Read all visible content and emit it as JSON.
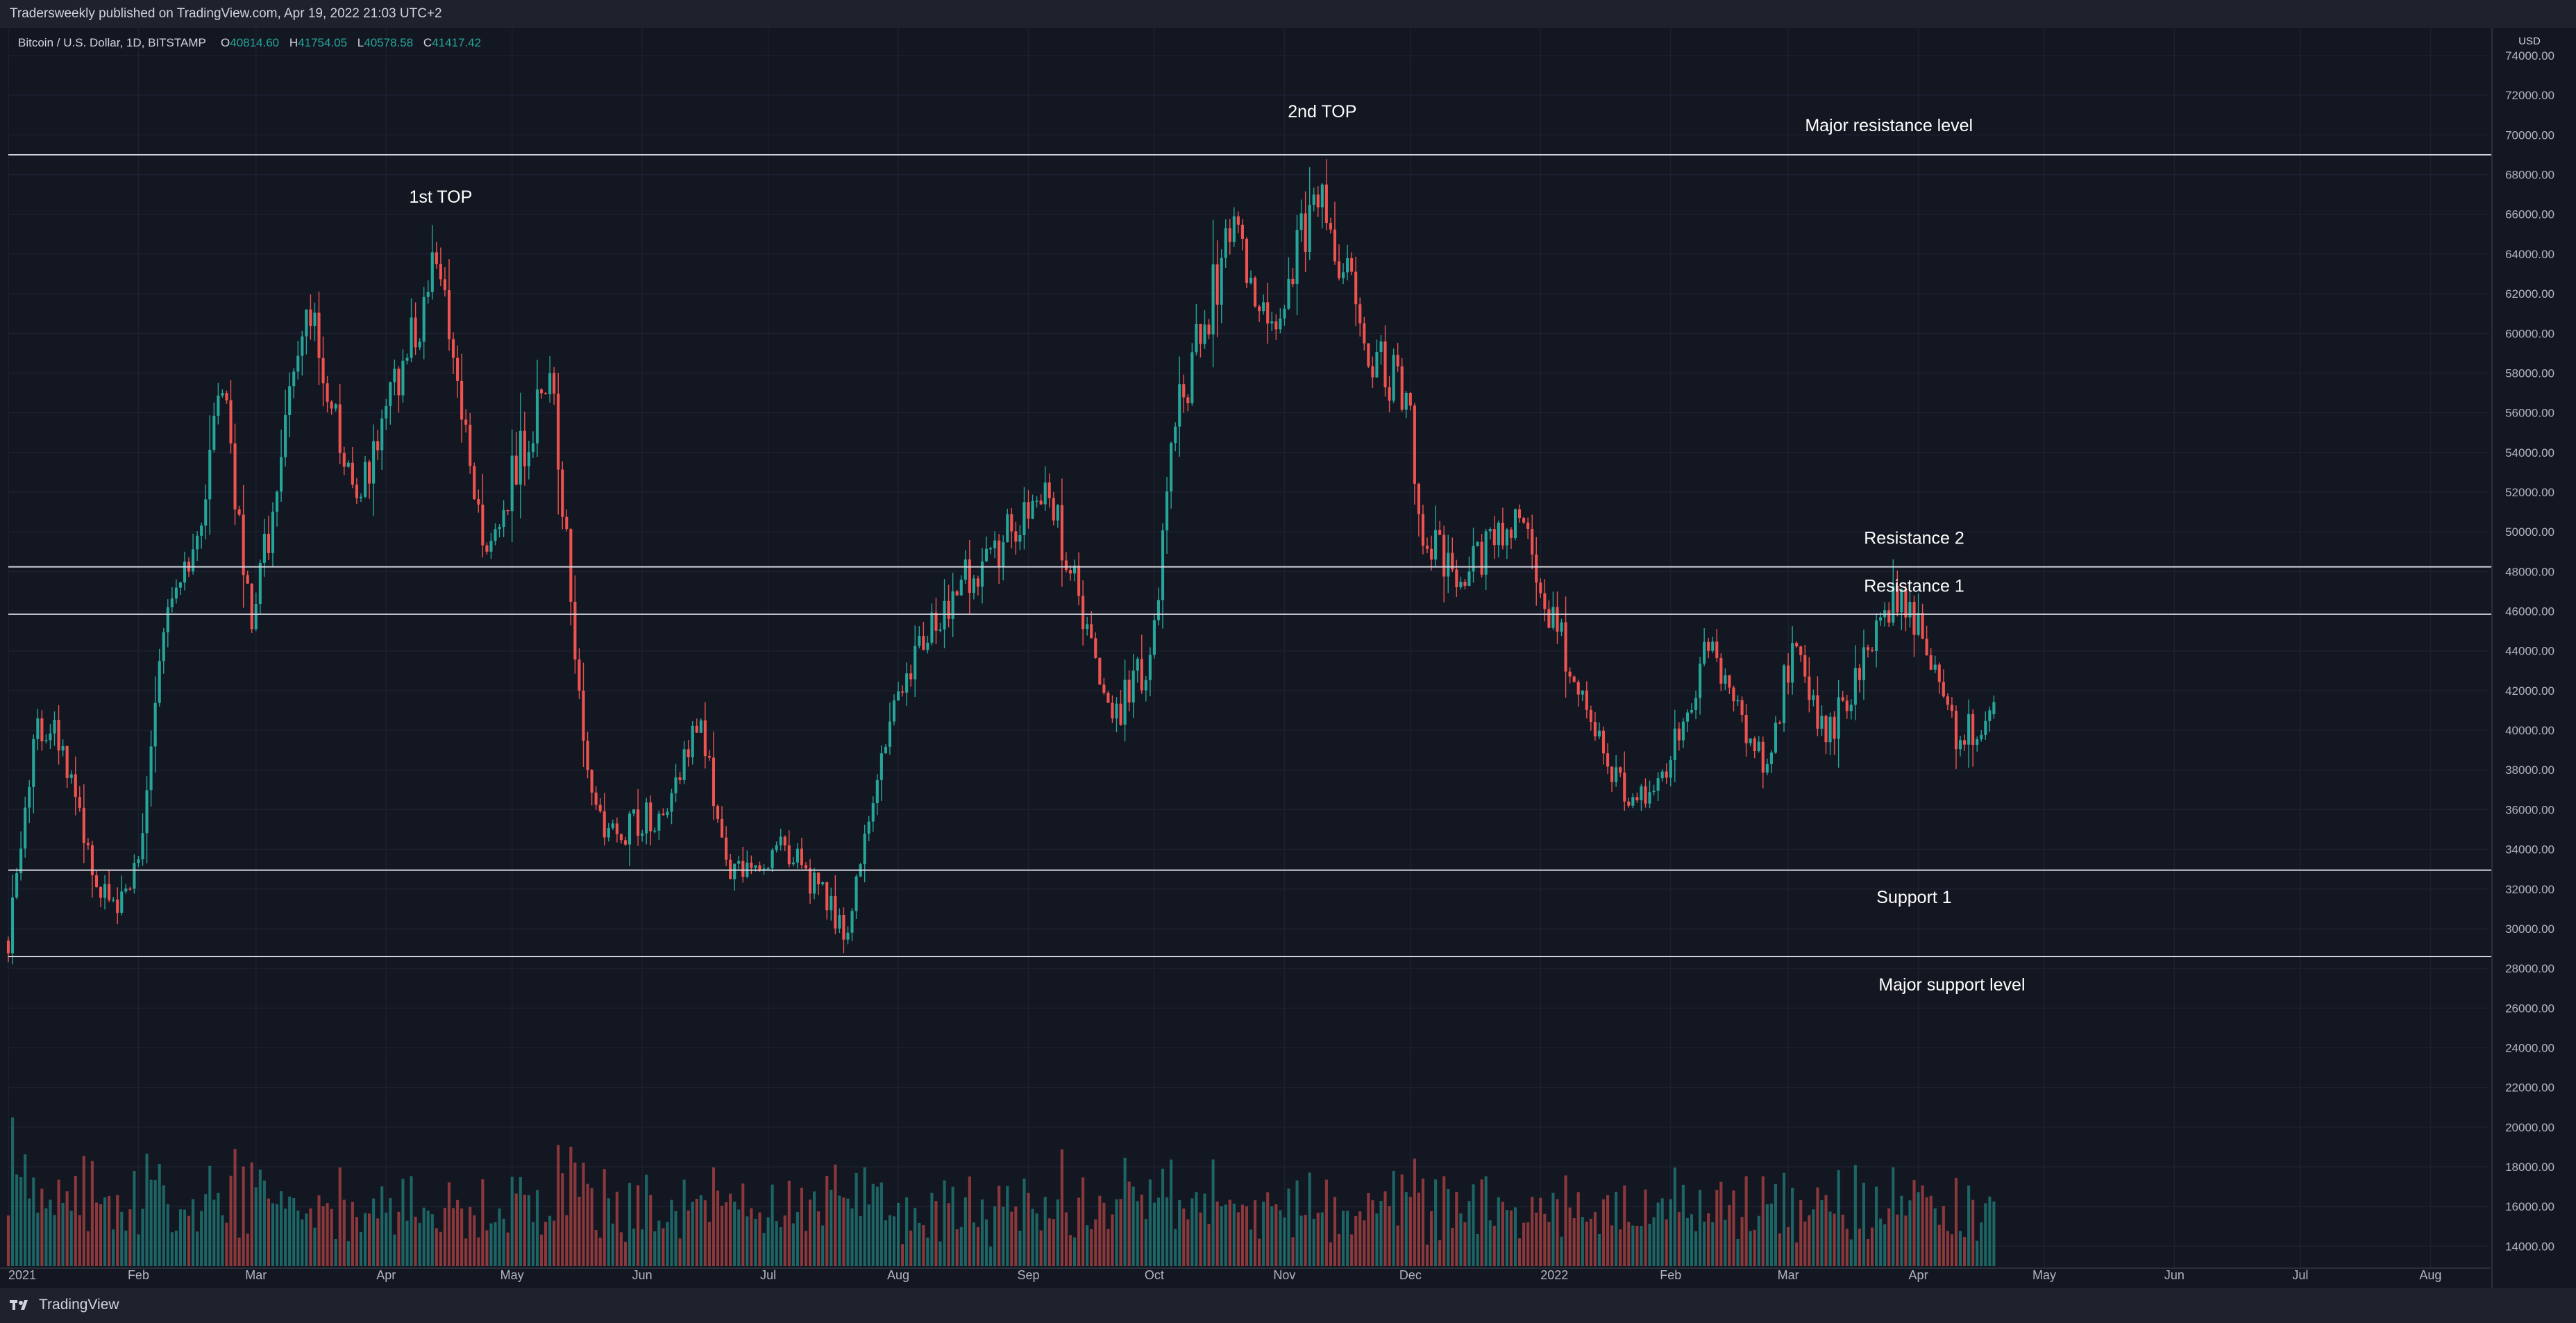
{
  "header": {
    "publish_text": "Tradersweekly published on TradingView.com, Apr 19, 2022 21:03 UTC+2"
  },
  "footer": {
    "brand_label": "TradingView",
    "brand_icon": "tradingview-logo-icon"
  },
  "symbol_info": {
    "name": "Bitcoin / U.S. Dollar, 1D, BITSTAMP",
    "o_label": "O",
    "o_value": "40814.60",
    "h_label": "H",
    "h_value": "41754.05",
    "l_label": "L",
    "l_value": "40578.58",
    "c_label": "C",
    "c_value": "41417.42"
  },
  "colors": {
    "background": "#131722",
    "panel": "#1e222d",
    "up": "#26a69a",
    "down": "#ef5350",
    "text": "#d1d4dc",
    "level_line": "#d1d4dc",
    "grid": "#1c2030"
  },
  "chart_data": {
    "type": "candlestick",
    "currency_label": "USD",
    "grid": true,
    "y_range": [
      13000,
      74000
    ],
    "y_ticks": [
      "14000.00",
      "16000.00",
      "18000.00",
      "20000.00",
      "22000.00",
      "24000.00",
      "26000.00",
      "28000.00",
      "30000.00",
      "32000.00",
      "34000.00",
      "36000.00",
      "38000.00",
      "40000.00",
      "42000.00",
      "44000.00",
      "46000.00",
      "48000.00",
      "50000.00",
      "52000.00",
      "54000.00",
      "56000.00",
      "58000.00",
      "60000.00",
      "62000.00",
      "64000.00",
      "66000.00",
      "68000.00",
      "70000.00",
      "72000.00",
      "74000.00"
    ],
    "x_range": [
      "2021-01-01",
      "2022-08-15"
    ],
    "x_ticks": [
      {
        "date": "2021-01-01",
        "label": "2021"
      },
      {
        "date": "2021-02-01",
        "label": "Feb"
      },
      {
        "date": "2021-03-01",
        "label": "Mar"
      },
      {
        "date": "2021-04-01",
        "label": "Apr"
      },
      {
        "date": "2021-05-01",
        "label": "May"
      },
      {
        "date": "2021-06-01",
        "label": "Jun"
      },
      {
        "date": "2021-07-01",
        "label": "Jul"
      },
      {
        "date": "2021-08-01",
        "label": "Aug"
      },
      {
        "date": "2021-09-01",
        "label": "Sep"
      },
      {
        "date": "2021-10-01",
        "label": "Oct"
      },
      {
        "date": "2021-11-01",
        "label": "Nov"
      },
      {
        "date": "2021-12-01",
        "label": "Dec"
      },
      {
        "date": "2022-01-01",
        "label": "2022"
      },
      {
        "date": "2022-02-01",
        "label": "Feb"
      },
      {
        "date": "2022-03-01",
        "label": "Mar"
      },
      {
        "date": "2022-04-01",
        "label": "Apr"
      },
      {
        "date": "2022-05-01",
        "label": "May"
      },
      {
        "date": "2022-06-01",
        "label": "Jun"
      },
      {
        "date": "2022-07-01",
        "label": "Jul"
      },
      {
        "date": "2022-08-01",
        "label": "Aug"
      }
    ],
    "horizontal_levels": [
      {
        "price": 69000,
        "price_label": "69000.00",
        "label": "Major resistance level",
        "label_date": "2022-03-25",
        "label_price": 70500
      },
      {
        "price": 48234,
        "price_label": "48234.00",
        "label": "Resistance 2",
        "label_date": "2022-03-31",
        "label_price": 49700
      },
      {
        "price": 45850,
        "price_label": "45850.00",
        "label": "Resistance 1",
        "label_date": "2022-03-31",
        "label_price": 47300
      },
      {
        "price": 32950.72,
        "price_label": "32950.72",
        "label": "Support 1",
        "label_date": "2022-03-31",
        "label_price": 31600
      },
      {
        "price": 28600,
        "price_label": "28600.00",
        "label": "Major support level",
        "label_date": "2022-04-09",
        "label_price": 27200
      }
    ],
    "annotations": [
      {
        "text": "1st TOP",
        "date": "2021-04-14",
        "price": 66900
      },
      {
        "text": "2nd TOP",
        "date": "2021-11-10",
        "price": 71200
      }
    ],
    "last_candle": {
      "date": "2022-04-19",
      "open": 40814.6,
      "high": 41754.05,
      "low": 40578.58,
      "close": 41417.42
    },
    "key_closes": [
      {
        "date": "2021-01-01",
        "close": 29400
      },
      {
        "date": "2021-01-08",
        "close": 40600
      },
      {
        "date": "2021-01-14",
        "close": 39200
      },
      {
        "date": "2021-01-22",
        "close": 32100
      },
      {
        "date": "2021-01-27",
        "close": 30800
      },
      {
        "date": "2021-02-01",
        "close": 33500
      },
      {
        "date": "2021-02-08",
        "close": 46200
      },
      {
        "date": "2021-02-13",
        "close": 48000
      },
      {
        "date": "2021-02-21",
        "close": 57000
      },
      {
        "date": "2021-02-28",
        "close": 45100
      },
      {
        "date": "2021-03-13",
        "close": 61200
      },
      {
        "date": "2021-03-25",
        "close": 51700
      },
      {
        "date": "2021-04-13",
        "close": 63500
      },
      {
        "date": "2021-04-25",
        "close": 49000
      },
      {
        "date": "2021-05-10",
        "close": 58000
      },
      {
        "date": "2021-05-19",
        "close": 38000
      },
      {
        "date": "2021-05-23",
        "close": 34600
      },
      {
        "date": "2021-06-05",
        "close": 35800
      },
      {
        "date": "2021-06-15",
        "close": 40500
      },
      {
        "date": "2021-06-22",
        "close": 32500
      },
      {
        "date": "2021-07-05",
        "close": 34200
      },
      {
        "date": "2021-07-20",
        "close": 29800
      },
      {
        "date": "2021-07-25",
        "close": 35400
      },
      {
        "date": "2021-07-31",
        "close": 41500
      },
      {
        "date": "2021-08-14",
        "close": 47000
      },
      {
        "date": "2021-09-06",
        "close": 51700
      },
      {
        "date": "2021-09-21",
        "close": 40600
      },
      {
        "date": "2021-09-30",
        "close": 43800
      },
      {
        "date": "2021-10-06",
        "close": 55300
      },
      {
        "date": "2021-10-20",
        "close": 65900
      },
      {
        "date": "2021-10-28",
        "close": 60500
      },
      {
        "date": "2021-11-10",
        "close": 67500
      },
      {
        "date": "2021-11-20",
        "close": 59500
      },
      {
        "date": "2021-11-30",
        "close": 57000
      },
      {
        "date": "2021-12-04",
        "close": 49300
      },
      {
        "date": "2021-12-15",
        "close": 48000
      },
      {
        "date": "2021-12-27",
        "close": 50700
      },
      {
        "date": "2022-01-10",
        "close": 41800
      },
      {
        "date": "2022-01-22",
        "close": 36200
      },
      {
        "date": "2022-02-01",
        "close": 38500
      },
      {
        "date": "2022-02-10",
        "close": 44000
      },
      {
        "date": "2022-02-24",
        "close": 38300
      },
      {
        "date": "2022-03-02",
        "close": 44400
      },
      {
        "date": "2022-03-10",
        "close": 39400
      },
      {
        "date": "2022-03-28",
        "close": 47100
      },
      {
        "date": "2022-04-11",
        "close": 39500
      },
      {
        "date": "2022-04-19",
        "close": 41417
      }
    ]
  }
}
